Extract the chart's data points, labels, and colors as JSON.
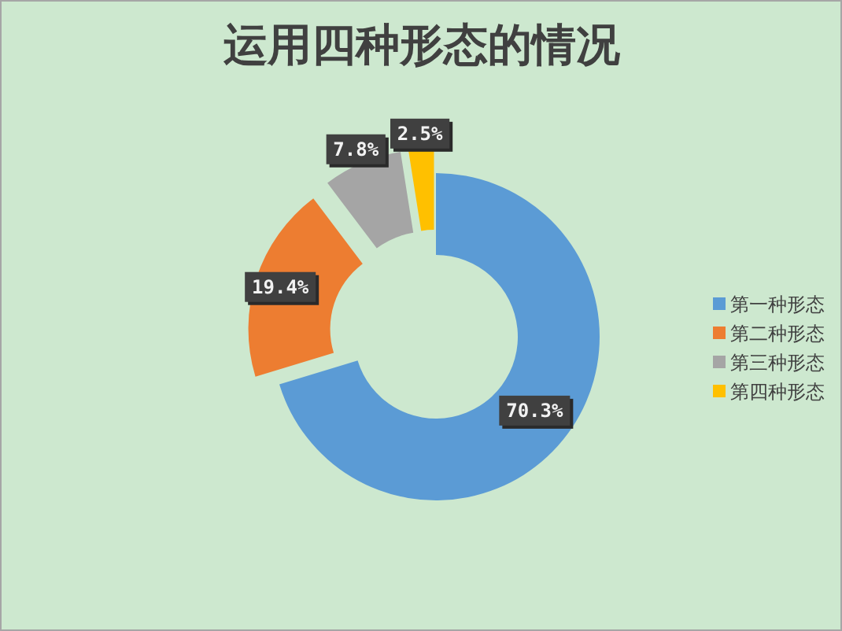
{
  "chart_data": {
    "type": "donut",
    "title": "运用四种形态的情况",
    "categories": [
      "第一种形态",
      "第二种形态",
      "第三种形态",
      "第四种形态"
    ],
    "values": [
      70.3,
      19.4,
      7.8,
      2.5
    ],
    "colors": [
      "#5b9bd5",
      "#ed7d31",
      "#a5a5a5",
      "#ffc000"
    ],
    "value_labels": [
      "70.3%",
      "19.4%",
      "7.8%",
      "2.5%"
    ],
    "legend": "right"
  }
}
